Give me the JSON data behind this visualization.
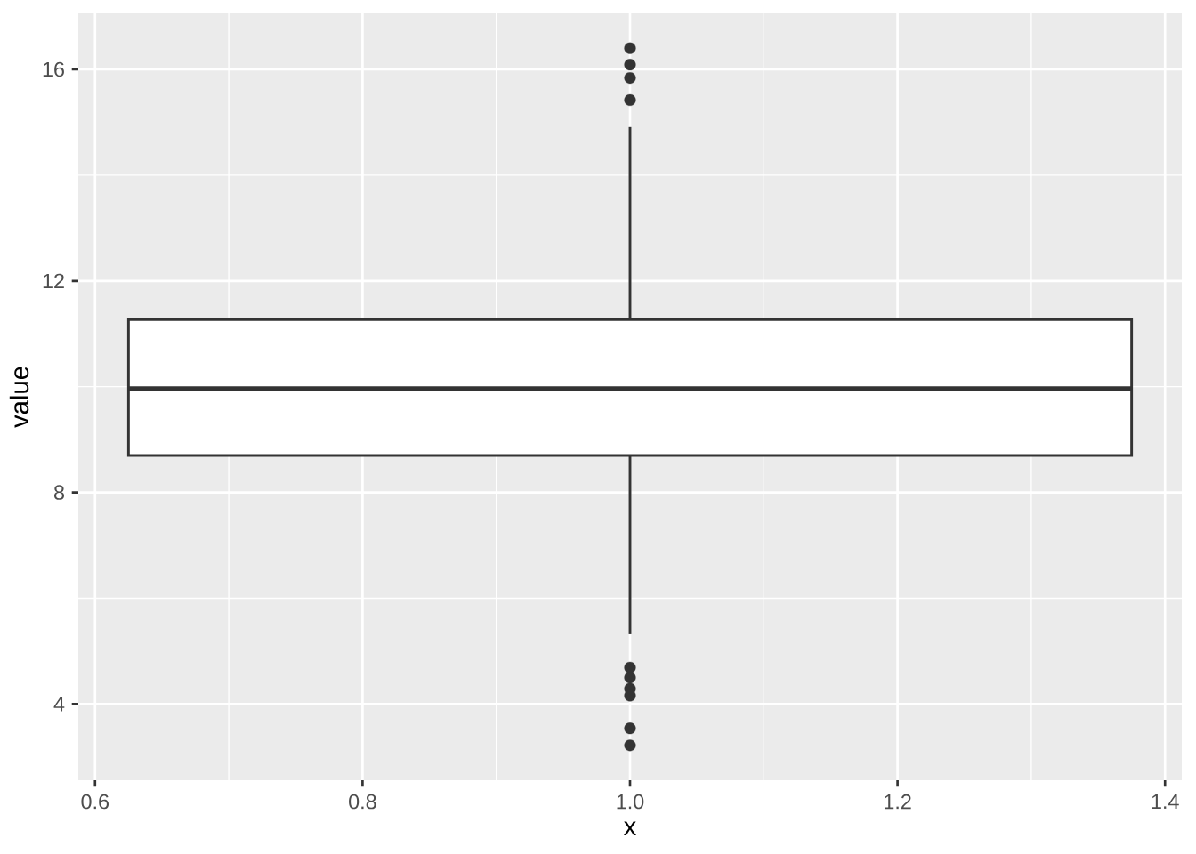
{
  "chart_data": {
    "type": "box",
    "xlabel": "x",
    "ylabel": "value",
    "categories": [
      null
    ],
    "color": "#333333",
    "boxes": [
      {
        "low": 5.32,
        "q1": 8.7,
        "median": 9.96,
        "q3": 11.27,
        "high": 14.91,
        "outliers": [
          16.4,
          16.09,
          15.84,
          15.42,
          4.69,
          4.5,
          4.29,
          4.16,
          3.54,
          3.22
        ]
      }
    ],
    "annotations": [
      "0.6",
      "0.8",
      "1.0",
      "1.2",
      "1.4"
    ],
    "ylim": [
      2.56,
      17.06
    ],
    "yticks": [
      4,
      8,
      12,
      16
    ],
    "grid": true
  }
}
